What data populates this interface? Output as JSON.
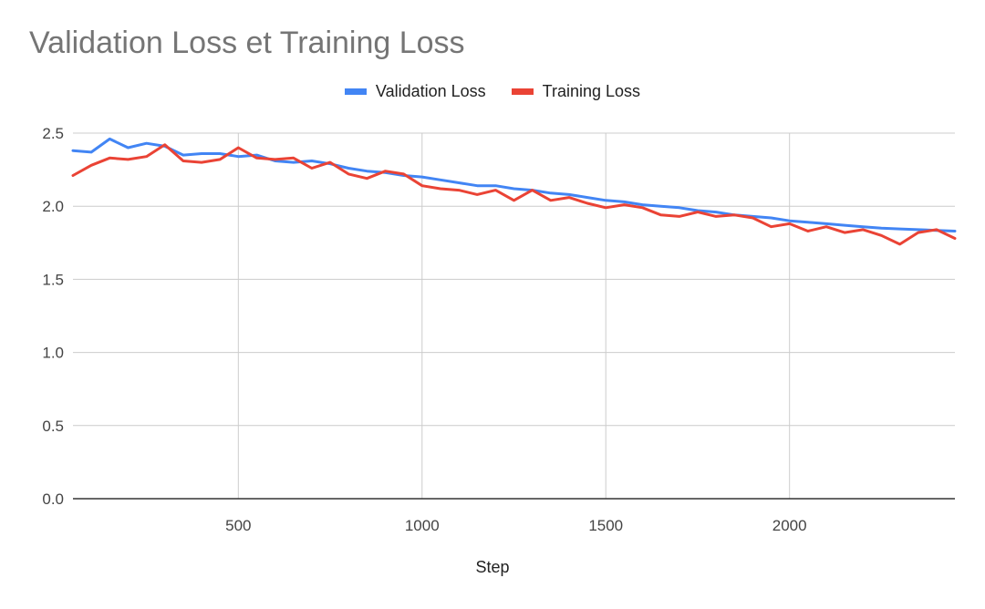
{
  "chart_data": {
    "type": "line",
    "title": "Validation Loss et Training Loss",
    "xlabel": "Step",
    "ylabel": "",
    "xlim": [
      50,
      2450
    ],
    "ylim": [
      0,
      2.5
    ],
    "x_ticks": [
      500,
      1000,
      1500,
      2000
    ],
    "x_tick_labels": [
      "500",
      "1000",
      "1500",
      "2000"
    ],
    "y_ticks": [
      0,
      0.5,
      1,
      1.5,
      2,
      2.5
    ],
    "y_tick_labels": [
      "0.0",
      "0.5",
      "1.0",
      "1.5",
      "2.0",
      "2.5"
    ],
    "grid": true,
    "legend_position": "top-center",
    "x": [
      50,
      100,
      150,
      200,
      250,
      300,
      350,
      400,
      450,
      500,
      550,
      600,
      650,
      700,
      750,
      800,
      850,
      900,
      950,
      1000,
      1050,
      1100,
      1150,
      1200,
      1250,
      1300,
      1350,
      1400,
      1450,
      1500,
      1550,
      1600,
      1650,
      1700,
      1750,
      1800,
      1850,
      1900,
      1950,
      2000,
      2050,
      2100,
      2150,
      2200,
      2250,
      2300,
      2350,
      2400,
      2450
    ],
    "series": [
      {
        "name": "Validation Loss",
        "color": "#4285f4",
        "values": [
          2.38,
          2.37,
          2.46,
          2.4,
          2.43,
          2.41,
          2.35,
          2.36,
          2.36,
          2.34,
          2.35,
          2.31,
          2.3,
          2.31,
          2.29,
          2.26,
          2.24,
          2.23,
          2.21,
          2.2,
          2.18,
          2.16,
          2.14,
          2.14,
          2.12,
          2.11,
          2.09,
          2.08,
          2.06,
          2.04,
          2.03,
          2.01,
          2.0,
          1.99,
          1.97,
          1.96,
          1.94,
          1.93,
          1.92,
          1.9,
          1.89,
          1.88,
          1.87,
          1.86,
          1.85,
          1.845,
          1.84,
          1.835,
          1.83
        ]
      },
      {
        "name": "Training Loss",
        "color": "#ea4335",
        "values": [
          2.21,
          2.28,
          2.33,
          2.32,
          2.34,
          2.42,
          2.31,
          2.3,
          2.32,
          2.4,
          2.33,
          2.32,
          2.33,
          2.26,
          2.3,
          2.22,
          2.19,
          2.24,
          2.22,
          2.14,
          2.12,
          2.11,
          2.08,
          2.11,
          2.04,
          2.11,
          2.04,
          2.06,
          2.02,
          1.99,
          2.01,
          1.99,
          1.94,
          1.93,
          1.96,
          1.93,
          1.94,
          1.92,
          1.86,
          1.88,
          1.83,
          1.86,
          1.82,
          1.84,
          1.8,
          1.74,
          1.82,
          1.84,
          1.78
        ]
      }
    ]
  }
}
